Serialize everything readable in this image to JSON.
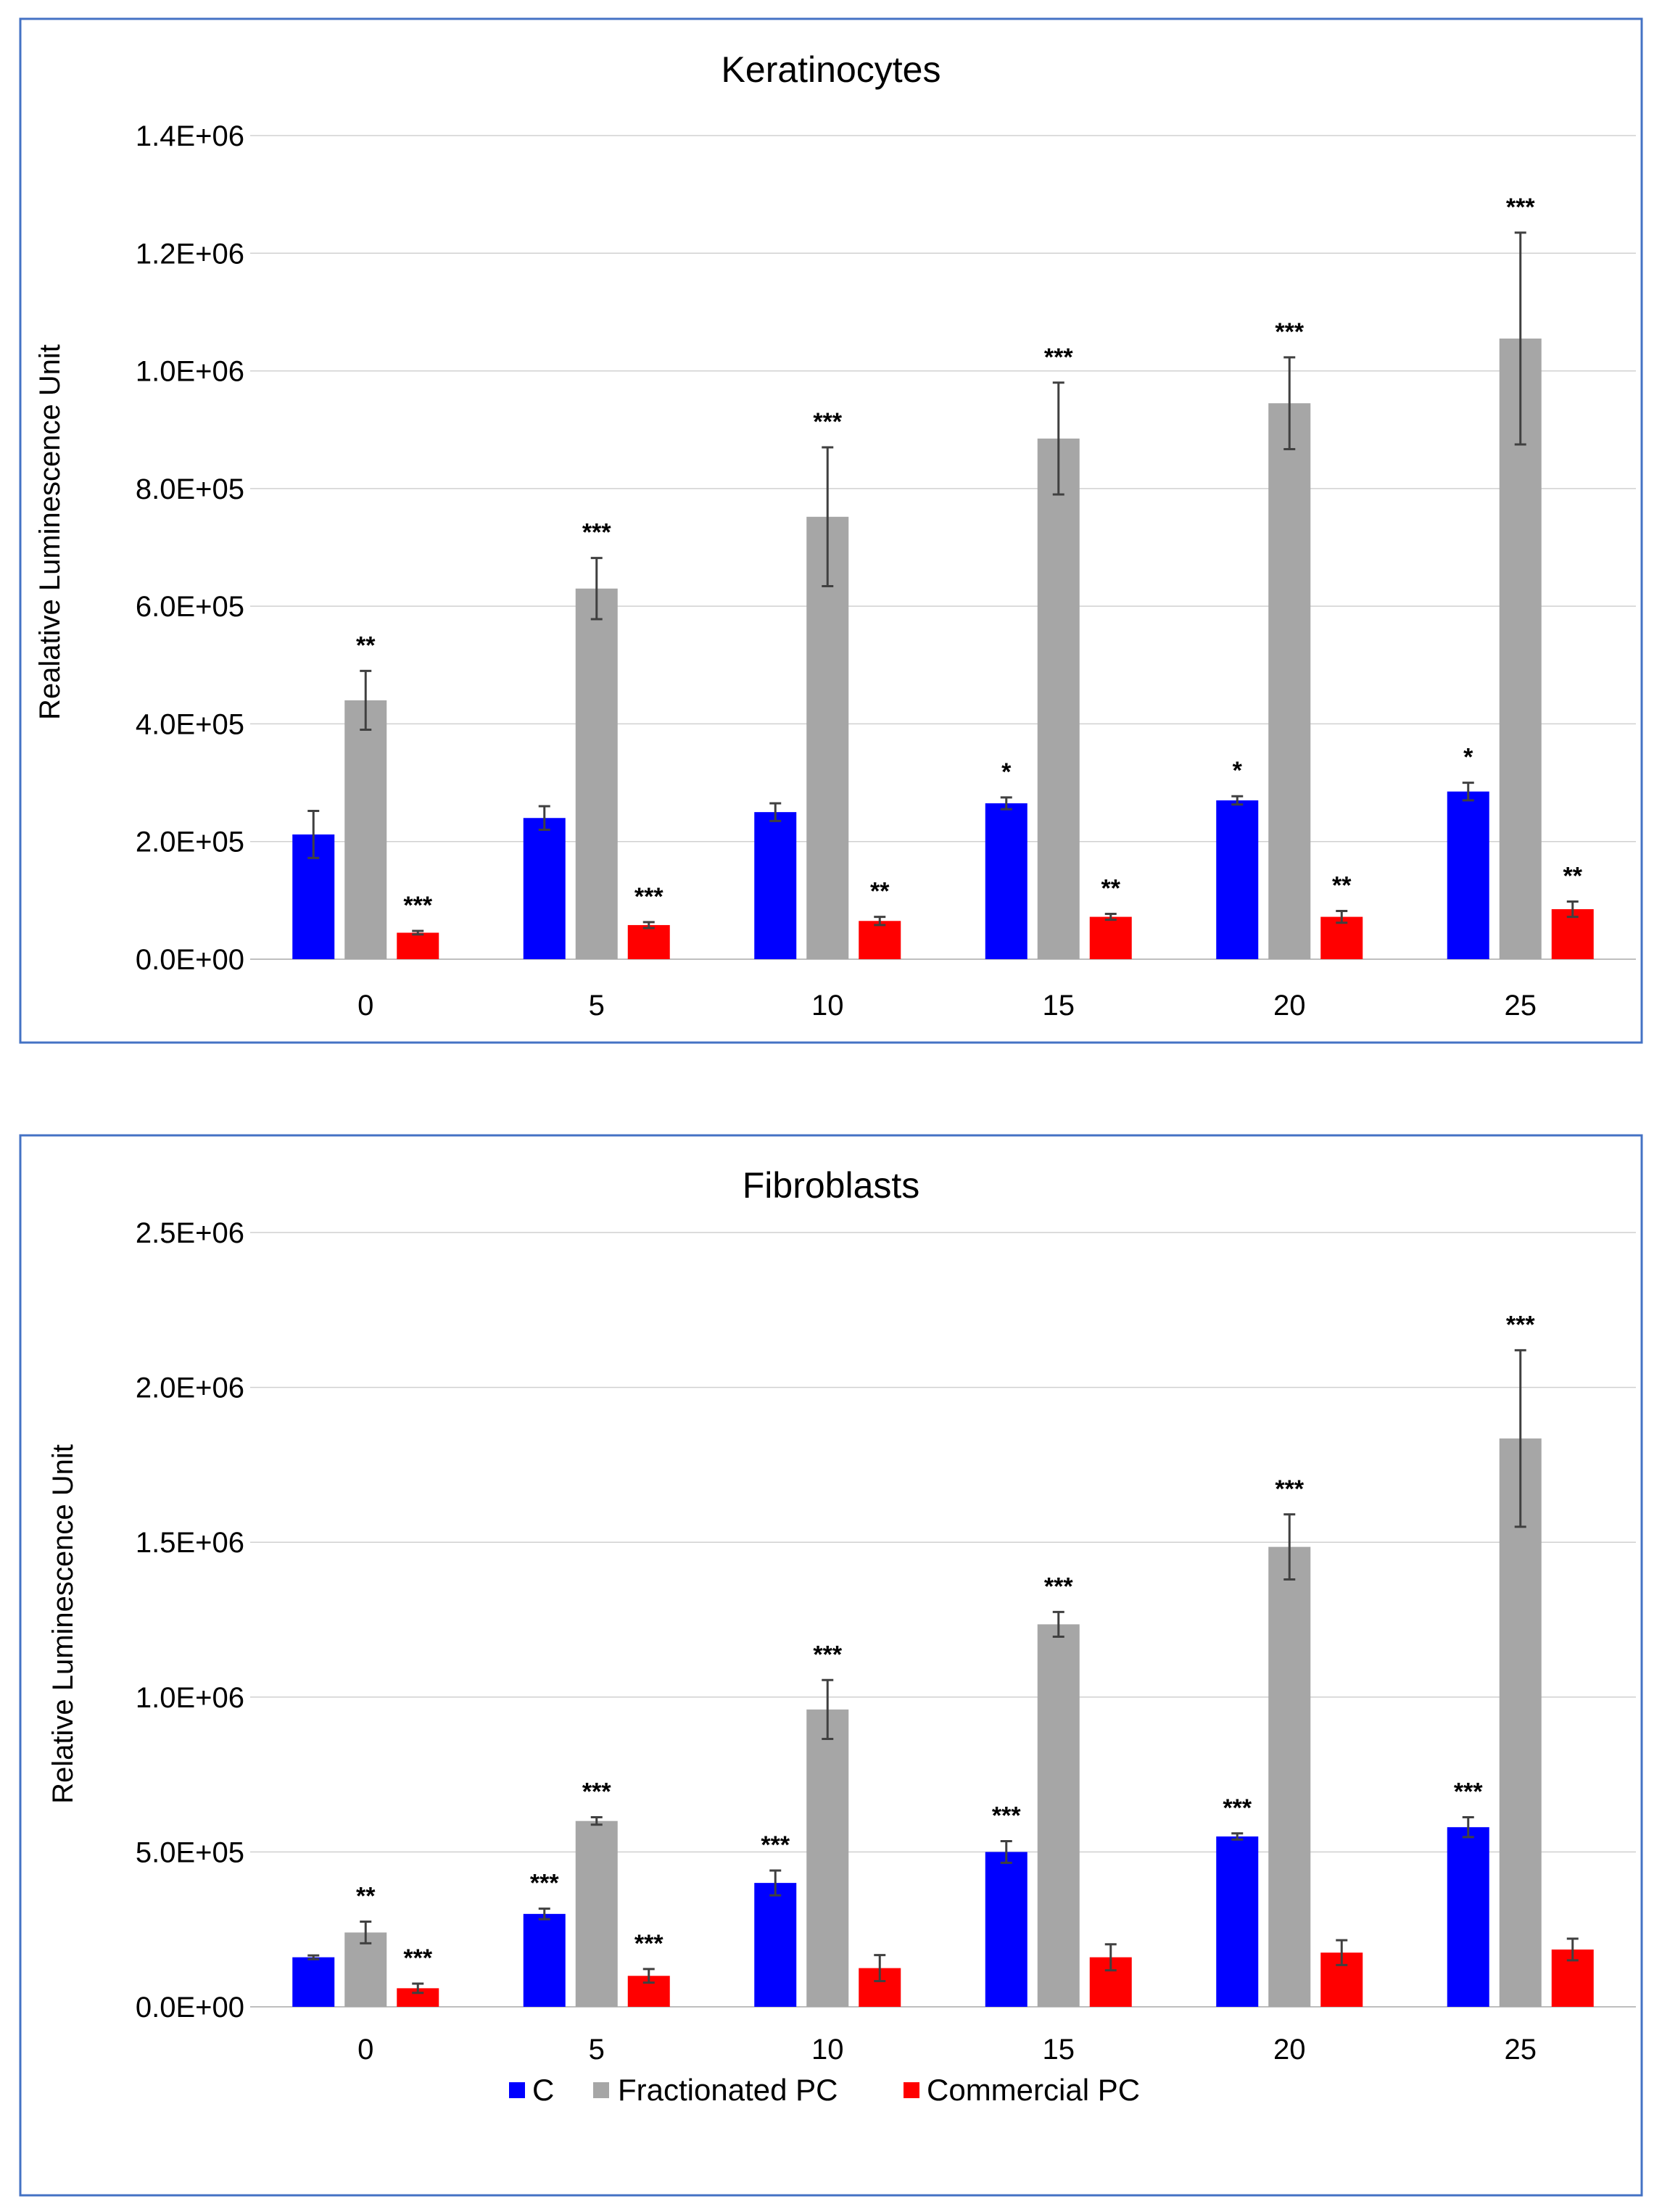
{
  "colors": {
    "C": "#0000ff",
    "Fractionated PC": "#a6a6a6",
    "Commercial PC": "#ff0000",
    "frame": "#4472c4",
    "grid": "#d0d0d0",
    "error": "#404040"
  },
  "legend": [
    "C",
    "Fractionated PC",
    "Commercial PC"
  ],
  "chart_data": [
    {
      "type": "bar",
      "title": "Keratinocytes",
      "ylabel": "Realative Luminescence Unit",
      "xlabel": "",
      "categories": [
        "0",
        "5",
        "10",
        "15",
        "20",
        "25"
      ],
      "ylim": [
        0,
        1400000
      ],
      "ytick_values": [
        0,
        200000,
        400000,
        600000,
        800000,
        1000000,
        1200000,
        1400000
      ],
      "ytick_labels": [
        "0.0E+00",
        "2.0E+05",
        "4.0E+05",
        "6.0E+05",
        "8.0E+05",
        "1.0E+06",
        "1.2E+06",
        "1.4E+06"
      ],
      "grid": true,
      "series": [
        {
          "name": "C",
          "values": [
            212000,
            240000,
            250000,
            265000,
            270000,
            285000
          ],
          "errors": [
            40000,
            20000,
            15000,
            10000,
            7000,
            15000
          ],
          "sig": [
            "",
            "",
            "",
            "*",
            "*",
            "*"
          ]
        },
        {
          "name": "Fractionated PC",
          "values": [
            440000,
            630000,
            752000,
            885000,
            945000,
            1055000
          ],
          "errors": [
            50000,
            52000,
            118000,
            95000,
            78000,
            180000
          ],
          "sig": [
            "**",
            "***",
            "***",
            "***",
            "***",
            "***"
          ]
        },
        {
          "name": "Commercial PC",
          "values": [
            45000,
            58000,
            65000,
            72000,
            72000,
            85000
          ],
          "errors": [
            3000,
            5000,
            7000,
            5000,
            10000,
            13000
          ],
          "sig": [
            "***",
            "***",
            "**",
            "**",
            "**",
            "**"
          ]
        }
      ]
    },
    {
      "type": "bar",
      "title": "Fibroblasts",
      "ylabel": "Relative Luminescence Unit",
      "xlabel": "",
      "categories": [
        "0",
        "5",
        "10",
        "15",
        "20",
        "25"
      ],
      "ylim": [
        0,
        2500000
      ],
      "ytick_values": [
        0,
        500000,
        1000000,
        1500000,
        2000000,
        2500000
      ],
      "ytick_labels": [
        "0.0E+00",
        "5.0E+05",
        "1.0E+06",
        "1.5E+06",
        "2.0E+06",
        "2.5E+06"
      ],
      "grid": true,
      "legend_position": "bottom",
      "series": [
        {
          "name": "C",
          "values": [
            160000,
            300000,
            400000,
            500000,
            550000,
            580000
          ],
          "errors": [
            6000,
            17000,
            40000,
            35000,
            10000,
            32000
          ],
          "sig": [
            "",
            "***",
            "***",
            "***",
            "***",
            "***"
          ]
        },
        {
          "name": "Fractionated PC",
          "values": [
            240000,
            600000,
            960000,
            1235000,
            1485000,
            1835000
          ],
          "errors": [
            35000,
            12000,
            95000,
            40000,
            105000,
            285000
          ],
          "sig": [
            "**",
            "***",
            "***",
            "***",
            "***",
            "***"
          ]
        },
        {
          "name": "Commercial PC",
          "values": [
            60000,
            100000,
            125000,
            160000,
            175000,
            185000
          ],
          "errors": [
            15000,
            22000,
            42000,
            42000,
            40000,
            35000
          ],
          "sig": [
            "***",
            "***",
            "",
            "",
            "",
            ""
          ]
        }
      ]
    }
  ]
}
